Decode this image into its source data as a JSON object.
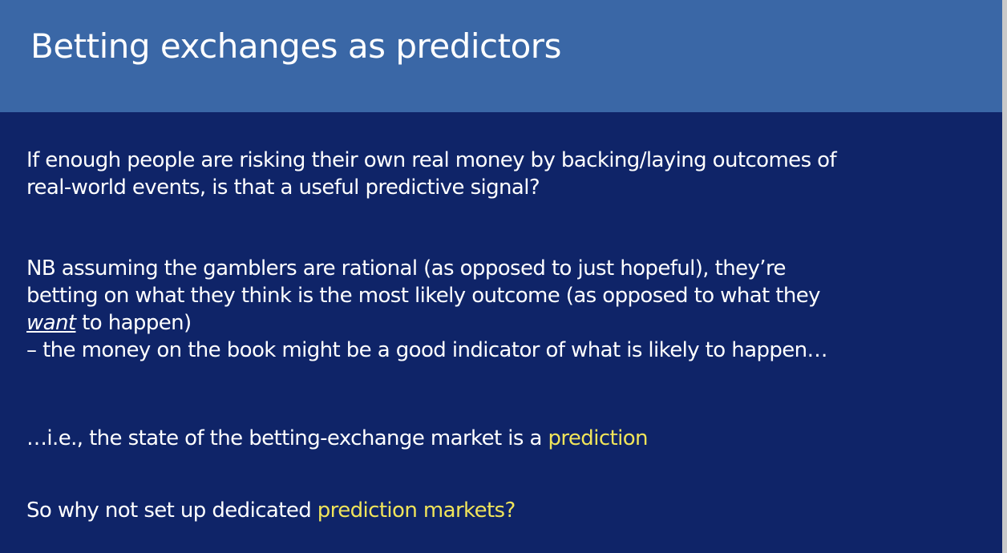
{
  "slide": {
    "title": "Betting exchanges as predictors",
    "paragraph1": {
      "line1": "If enough people are risking their own real money by backing/laying outcomes of",
      "line2": "real-world events, is that a useful predictive signal?"
    },
    "paragraph2": {
      "line1": "NB assuming the gamblers are rational (as opposed to just hopeful), they’re",
      "line2": "betting on what they think is the most likely outcome (as opposed to what they",
      "line3_emphasis": "want",
      "line3_rest": " to happen)",
      "line4": "– the money on the book might be a good indicator of what is likely to happen…"
    },
    "paragraph3": {
      "text": "…i.e., the state of the betting-exchange market is a ",
      "highlight": "prediction"
    },
    "paragraph4": {
      "text": "So why not set up dedicated ",
      "highlight": "prediction markets?"
    },
    "colors": {
      "title_bar": "#3a67a6",
      "background": "#0f2468",
      "text": "#ffffff",
      "highlight": "#f0e45a"
    }
  }
}
